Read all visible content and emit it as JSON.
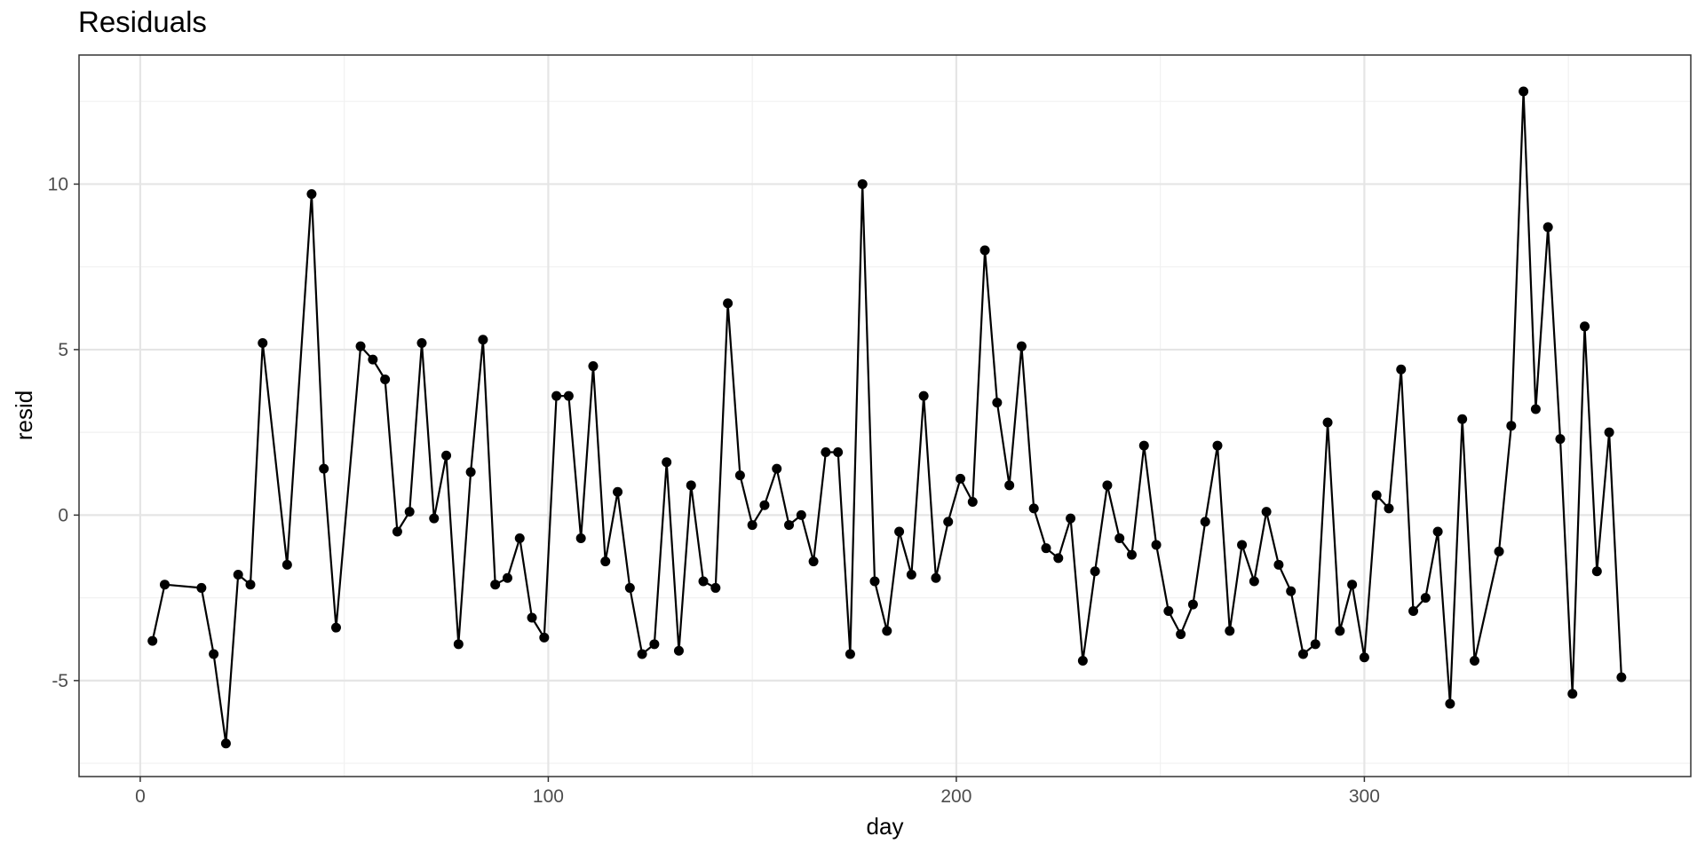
{
  "chart_data": {
    "type": "line",
    "title": "Residuals",
    "xlabel": "day",
    "ylabel": "resid",
    "xlim": [
      -15,
      380
    ],
    "ylim": [
      -7.9,
      13.9
    ],
    "x_ticks": [
      0,
      100,
      200,
      300
    ],
    "x_tick_labels": [
      "0",
      "100",
      "200",
      "300"
    ],
    "y_ticks": [
      -5,
      0,
      5,
      10
    ],
    "y_tick_labels": [
      "-5",
      "0",
      "5",
      "10"
    ],
    "grid": true,
    "markers": true,
    "colors": {
      "line": "#000000",
      "point": "#000000",
      "grid_major": "#e5e5e5",
      "grid_minor": "#f1f1f1",
      "panel_border": "#333333"
    },
    "series": [
      {
        "x": [
          3,
          6,
          15,
          18,
          21,
          24,
          27,
          30,
          36,
          42,
          45,
          48,
          54,
          57,
          60,
          63,
          66,
          69,
          72,
          75,
          78,
          81,
          84,
          87,
          90,
          93,
          96,
          99,
          102,
          105,
          108,
          111,
          114,
          117,
          120,
          123,
          126,
          129,
          132,
          135,
          138,
          141,
          144,
          147,
          150,
          153,
          156,
          159,
          162,
          165,
          168,
          171,
          174,
          177,
          180,
          183,
          186,
          189,
          192,
          195,
          198,
          201,
          204,
          207,
          210,
          213,
          216,
          219,
          222,
          225,
          228,
          231,
          234,
          237,
          240,
          243,
          246,
          249,
          252,
          255,
          258,
          261,
          264,
          267,
          270,
          273,
          276,
          279,
          282,
          285,
          288,
          291,
          294,
          297,
          300,
          303,
          306,
          309,
          312,
          315,
          318,
          321,
          324,
          327,
          333,
          336,
          339,
          342,
          345,
          348,
          351,
          354,
          357,
          360,
          363
        ],
        "y": [
          -3.8,
          -2.1,
          -2.2,
          -4.2,
          -6.9,
          -1.8,
          -2.1,
          5.2,
          -1.5,
          9.7,
          1.4,
          -3.4,
          5.1,
          4.7,
          4.1,
          -0.5,
          0.1,
          5.2,
          -0.1,
          1.8,
          -3.9,
          1.3,
          5.3,
          -2.1,
          -1.9,
          -0.7,
          -3.1,
          -3.7,
          3.6,
          3.6,
          -0.7,
          4.5,
          -1.4,
          0.7,
          -2.2,
          -4.2,
          -3.9,
          1.6,
          -4.1,
          0.9,
          -2.0,
          -2.2,
          6.4,
          1.2,
          -0.3,
          0.3,
          1.4,
          -0.3,
          0.0,
          -1.4,
          1.9,
          1.9,
          -4.2,
          10.0,
          -2.0,
          -3.5,
          -0.5,
          -1.8,
          3.6,
          -1.9,
          -0.2,
          1.1,
          0.4,
          8.0,
          3.4,
          0.9,
          5.1,
          0.2,
          -1.0,
          -1.3,
          -0.1,
          -4.4,
          -1.7,
          0.9,
          -0.7,
          -1.2,
          2.1,
          -0.9,
          -2.9,
          -3.6,
          -2.7,
          -0.2,
          2.1,
          -3.5,
          -0.9,
          -2.0,
          0.1,
          -1.5,
          -2.3,
          -4.2,
          -3.9,
          2.8,
          -3.5,
          -2.1,
          -4.3,
          0.6,
          0.2,
          4.4,
          -2.9,
          -2.5,
          -0.5,
          -5.7,
          2.9,
          -4.4,
          -1.1,
          2.7,
          12.8,
          3.2,
          8.7,
          2.3,
          -5.4,
          5.7,
          -1.7,
          2.5,
          -4.9
        ]
      }
    ]
  }
}
